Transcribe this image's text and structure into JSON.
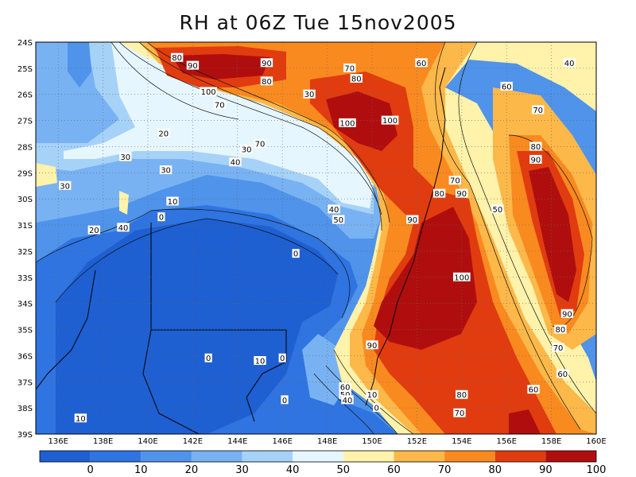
{
  "title": "RH at 06Z Tue 15nov2005",
  "map": {
    "lon_range": [
      135,
      160
    ],
    "lat_range": [
      -39,
      -24
    ],
    "lon_ticks": [
      "136E",
      "138E",
      "140E",
      "142E",
      "144E",
      "146E",
      "148E",
      "150E",
      "152E",
      "154E",
      "156E",
      "158E",
      "160E"
    ],
    "lat_ticks": [
      "24S",
      "25S",
      "26S",
      "27S",
      "28S",
      "29S",
      "30S",
      "31S",
      "32S",
      "33S",
      "34S",
      "35S",
      "36S",
      "37S",
      "38S",
      "39S"
    ],
    "grid": "dotted",
    "variable": "relative humidity (%)"
  },
  "colorbar": {
    "labels": [
      "0",
      "10",
      "20",
      "30",
      "40",
      "50",
      "60",
      "70",
      "80",
      "90",
      "100"
    ],
    "colors": [
      "#1e5fd2",
      "#2f74e0",
      "#4f93ea",
      "#78b2f2",
      "#a6d2f8",
      "#e6f6ff",
      "#fff2aa",
      "#fdb84a",
      "#f98a20",
      "#e03c10",
      "#b00e0e"
    ]
  },
  "contour_labels": [
    {
      "text": "80",
      "lon": 141.3,
      "lat": -24.6
    },
    {
      "text": "90",
      "lon": 142.0,
      "lat": -24.9
    },
    {
      "text": "90",
      "lon": 145.3,
      "lat": -24.8
    },
    {
      "text": "100",
      "lon": 142.7,
      "lat": -25.9
    },
    {
      "text": "70",
      "lon": 143.2,
      "lat": -26.4
    },
    {
      "text": "80",
      "lon": 145.3,
      "lat": -25.5
    },
    {
      "text": "70",
      "lon": 149.0,
      "lat": -25.0
    },
    {
      "text": "80",
      "lon": 149.3,
      "lat": -25.4
    },
    {
      "text": "60",
      "lon": 152.2,
      "lat": -24.8
    },
    {
      "text": "40",
      "lon": 158.8,
      "lat": -24.8
    },
    {
      "text": "30",
      "lon": 147.2,
      "lat": -26.0
    },
    {
      "text": "100",
      "lon": 148.9,
      "lat": -27.1
    },
    {
      "text": "100",
      "lon": 150.8,
      "lat": -27.0
    },
    {
      "text": "60",
      "lon": 156.0,
      "lat": -25.7
    },
    {
      "text": "70",
      "lon": 157.4,
      "lat": -26.6
    },
    {
      "text": "20",
      "lon": 140.7,
      "lat": -27.5
    },
    {
      "text": "30",
      "lon": 144.4,
      "lat": -28.1
    },
    {
      "text": "70",
      "lon": 145.0,
      "lat": -27.9
    },
    {
      "text": "30",
      "lon": 139.0,
      "lat": -28.4
    },
    {
      "text": "40",
      "lon": 143.9,
      "lat": -28.6
    },
    {
      "text": "30",
      "lon": 140.8,
      "lat": -28.9
    },
    {
      "text": "80",
      "lon": 157.3,
      "lat": -28.0
    },
    {
      "text": "90",
      "lon": 157.3,
      "lat": -28.5
    },
    {
      "text": "30",
      "lon": 136.3,
      "lat": -29.5
    },
    {
      "text": "10",
      "lon": 141.1,
      "lat": -30.1
    },
    {
      "text": "70",
      "lon": 153.7,
      "lat": -29.3
    },
    {
      "text": "80",
      "lon": 153.0,
      "lat": -29.8
    },
    {
      "text": "90",
      "lon": 154.0,
      "lat": -29.8
    },
    {
      "text": "40",
      "lon": 148.3,
      "lat": -30.4
    },
    {
      "text": "50",
      "lon": 148.5,
      "lat": -30.8
    },
    {
      "text": "0",
      "lon": 140.6,
      "lat": -30.7
    },
    {
      "text": "90",
      "lon": 151.8,
      "lat": -30.8
    },
    {
      "text": "50",
      "lon": 155.6,
      "lat": -30.4
    },
    {
      "text": "40",
      "lon": 138.9,
      "lat": -31.1
    },
    {
      "text": "20",
      "lon": 137.6,
      "lat": -31.2
    },
    {
      "text": "0",
      "lon": 146.6,
      "lat": -32.1
    },
    {
      "text": "100",
      "lon": 154.0,
      "lat": -33.0
    },
    {
      "text": "90",
      "lon": 158.7,
      "lat": -34.4
    },
    {
      "text": "80",
      "lon": 158.4,
      "lat": -35.0
    },
    {
      "text": "90",
      "lon": 150.0,
      "lat": -35.6
    },
    {
      "text": "70",
      "lon": 158.3,
      "lat": -35.7
    },
    {
      "text": "0",
      "lon": 142.7,
      "lat": -36.1
    },
    {
      "text": "10",
      "lon": 145.0,
      "lat": -36.2
    },
    {
      "text": "0",
      "lon": 146.0,
      "lat": -36.1
    },
    {
      "text": "60",
      "lon": 158.5,
      "lat": -36.7
    },
    {
      "text": "60",
      "lon": 157.2,
      "lat": -37.3
    },
    {
      "text": "60",
      "lon": 148.8,
      "lat": -37.2
    },
    {
      "text": "50",
      "lon": 148.8,
      "lat": -37.5
    },
    {
      "text": "40",
      "lon": 148.9,
      "lat": -37.7
    },
    {
      "text": "10",
      "lon": 150.0,
      "lat": -37.5
    },
    {
      "text": "0",
      "lon": 146.1,
      "lat": -37.7
    },
    {
      "text": "80",
      "lon": 154.0,
      "lat": -37.5
    },
    {
      "text": "0",
      "lon": 150.2,
      "lat": -38.0
    },
    {
      "text": "70",
      "lon": 153.9,
      "lat": -38.2
    },
    {
      "text": "10",
      "lon": 137.0,
      "lat": -38.4
    }
  ]
}
